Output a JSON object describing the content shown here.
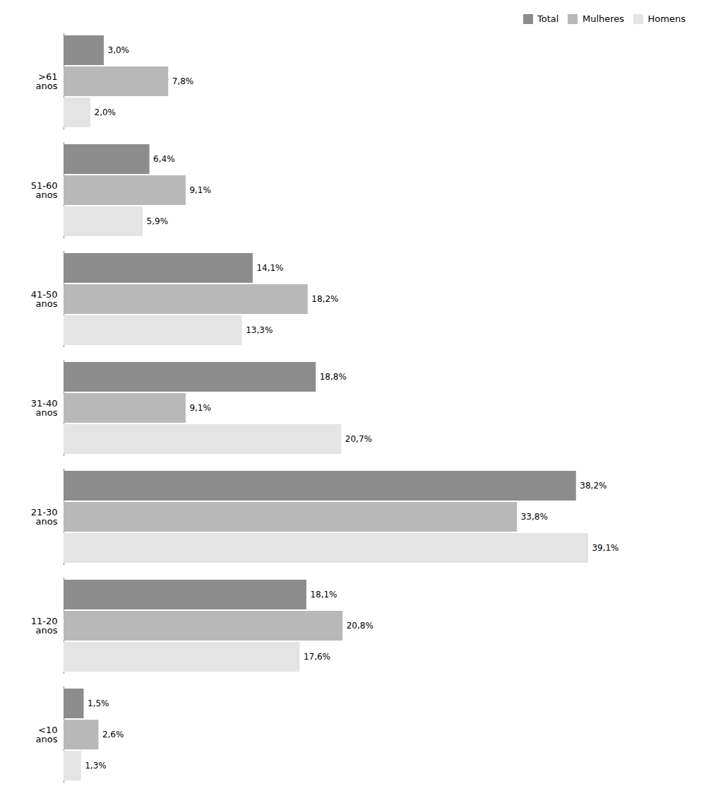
{
  "chart_data": {
    "type": "bar",
    "orientation": "horizontal",
    "categories": [
      ">61\nanos",
      "51-60\nanos",
      "41-50\nanos",
      "31-40\nanos",
      "21-30\nanos",
      "11-20\nanos",
      "<10\nanos"
    ],
    "series": [
      {
        "name": "Total",
        "color": "#8c8c8c",
        "values": [
          3.0,
          6.4,
          14.1,
          18.8,
          38.2,
          18.1,
          1.5
        ],
        "value_labels": [
          "3,0%",
          "6,4%",
          "14,1%",
          "18,8%",
          "38,2%",
          "18,1%",
          "1,5%"
        ]
      },
      {
        "name": "Mulheres",
        "color": "#b8b8b8",
        "values": [
          7.8,
          9.1,
          18.2,
          9.1,
          33.8,
          20.8,
          2.6
        ],
        "value_labels": [
          "7,8%",
          "9,1%",
          "18,2%",
          "9,1%",
          "33,8%",
          "20,8%",
          "2,6%"
        ]
      },
      {
        "name": "Homens",
        "color": "#e4e4e4",
        "values": [
          2.0,
          5.9,
          13.3,
          20.7,
          39.1,
          17.6,
          1.3
        ],
        "value_labels": [
          "2,0%",
          "5,9%",
          "13,3%",
          "20,7%",
          "39,1%",
          "17,6%",
          "1,3%"
        ]
      }
    ],
    "xlim": [
      0,
      46
    ],
    "data_labels": true,
    "tick_labels": "y",
    "grid": false,
    "legend": "upper right"
  }
}
